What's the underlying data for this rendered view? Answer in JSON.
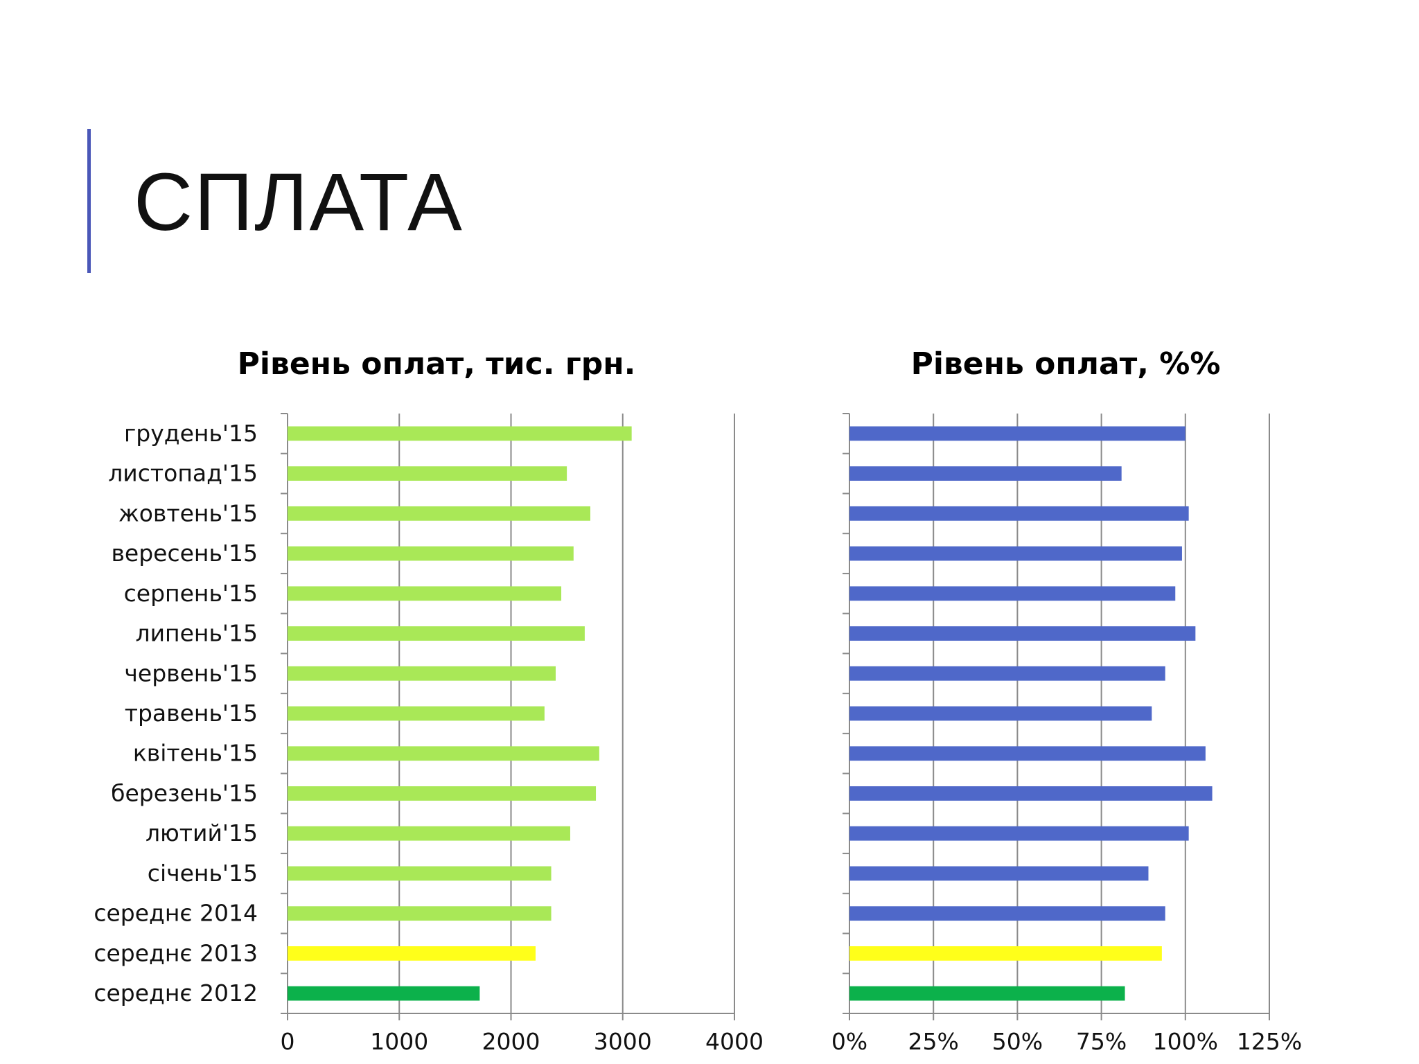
{
  "slide": {
    "title": "СПЛАТА",
    "accent_color": "#4a57b8"
  },
  "chart_data": [
    {
      "type": "bar",
      "orientation": "horizontal",
      "title": "Рівень оплат, тис. грн.",
      "categories": [
        "грудень'15",
        "листопад'15",
        "жовтень'15",
        "вересень'15",
        "серпень'15",
        "липень'15",
        "червень'15",
        "травень'15",
        "квітень'15",
        "березень'15",
        "лютий'15",
        "січень'15",
        "середнє 2014",
        "середнє 2013",
        "середнє 2012"
      ],
      "values": [
        3080,
        2500,
        2710,
        2560,
        2450,
        2660,
        2400,
        2300,
        2790,
        2760,
        2530,
        2360,
        2360,
        2220,
        1720
      ],
      "colors": [
        "#a9e857",
        "#a9e857",
        "#a9e857",
        "#a9e857",
        "#a9e857",
        "#a9e857",
        "#a9e857",
        "#a9e857",
        "#a9e857",
        "#a9e857",
        "#a9e857",
        "#a9e857",
        "#a9e857",
        "#ffff1a",
        "#0cb14b"
      ],
      "xlim": [
        0,
        4000
      ],
      "ticks": [
        0,
        1000,
        2000,
        3000,
        4000
      ],
      "tick_labels": [
        "0",
        "1000",
        "2000",
        "3000",
        "4000"
      ],
      "grid": true
    },
    {
      "type": "bar",
      "orientation": "horizontal",
      "title": "Рівень оплат, %%",
      "categories": [
        "грудень'15",
        "листопад'15",
        "жовтень'15",
        "вересень'15",
        "серпень'15",
        "липень'15",
        "червень'15",
        "травень'15",
        "квітень'15",
        "березень'15",
        "лютий'15",
        "січень'15",
        "середнє 2014",
        "середнє 2013",
        "середнє 2012"
      ],
      "values": [
        100,
        81,
        101,
        99,
        97,
        103,
        94,
        90,
        106,
        108,
        101,
        89,
        94,
        93,
        82
      ],
      "colors": [
        "#4f68c9",
        "#4f68c9",
        "#4f68c9",
        "#4f68c9",
        "#4f68c9",
        "#4f68c9",
        "#4f68c9",
        "#4f68c9",
        "#4f68c9",
        "#4f68c9",
        "#4f68c9",
        "#4f68c9",
        "#4f68c9",
        "#ffff1a",
        "#0cb14b"
      ],
      "xlim": [
        0,
        125
      ],
      "ticks": [
        0,
        25,
        50,
        75,
        100,
        125
      ],
      "tick_labels": [
        "0%",
        "25%",
        "50%",
        "75%",
        "100%",
        "125%"
      ],
      "grid": true
    }
  ]
}
